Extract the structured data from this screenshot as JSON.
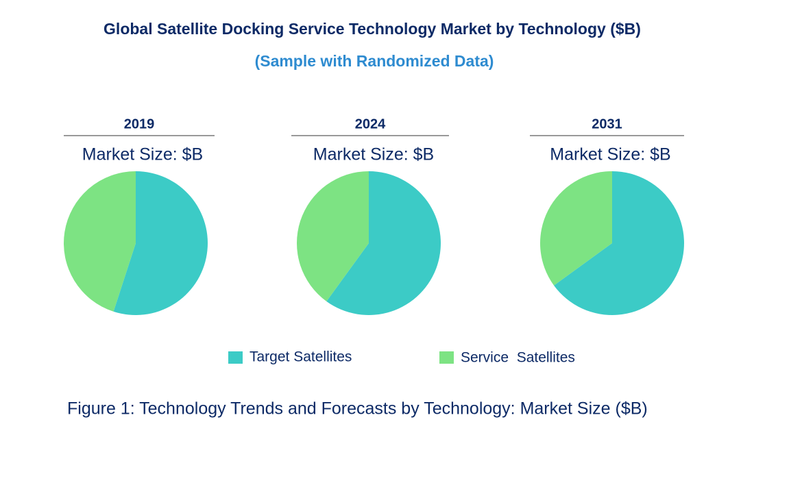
{
  "title": "Global Satellite Docking Service Technology Market by Technology ($B)",
  "subtitle": "(Sample with Randomized Data)",
  "caption": "Figure 1: Technology Trends and Forecasts by Technology: Market Size ($B)",
  "chart_data": [
    {
      "type": "pie",
      "title": "2019",
      "subtitle": "Market Size: $B",
      "categories": [
        "Target Satellites",
        "Service  Satellites"
      ],
      "values": [
        55,
        45
      ],
      "colors": [
        "#3ccbc6",
        "#7de383"
      ]
    },
    {
      "type": "pie",
      "title": "2024",
      "subtitle": "Market Size: $B",
      "categories": [
        "Target Satellites",
        "Service  Satellites"
      ],
      "values": [
        60,
        40
      ],
      "colors": [
        "#3ccbc6",
        "#7de383"
      ]
    },
    {
      "type": "pie",
      "title": "2031",
      "subtitle": "Market Size: $B",
      "categories": [
        "Target Satellites",
        "Service  Satellites"
      ],
      "values": [
        65,
        35
      ],
      "colors": [
        "#3ccbc6",
        "#7de383"
      ]
    }
  ]
}
